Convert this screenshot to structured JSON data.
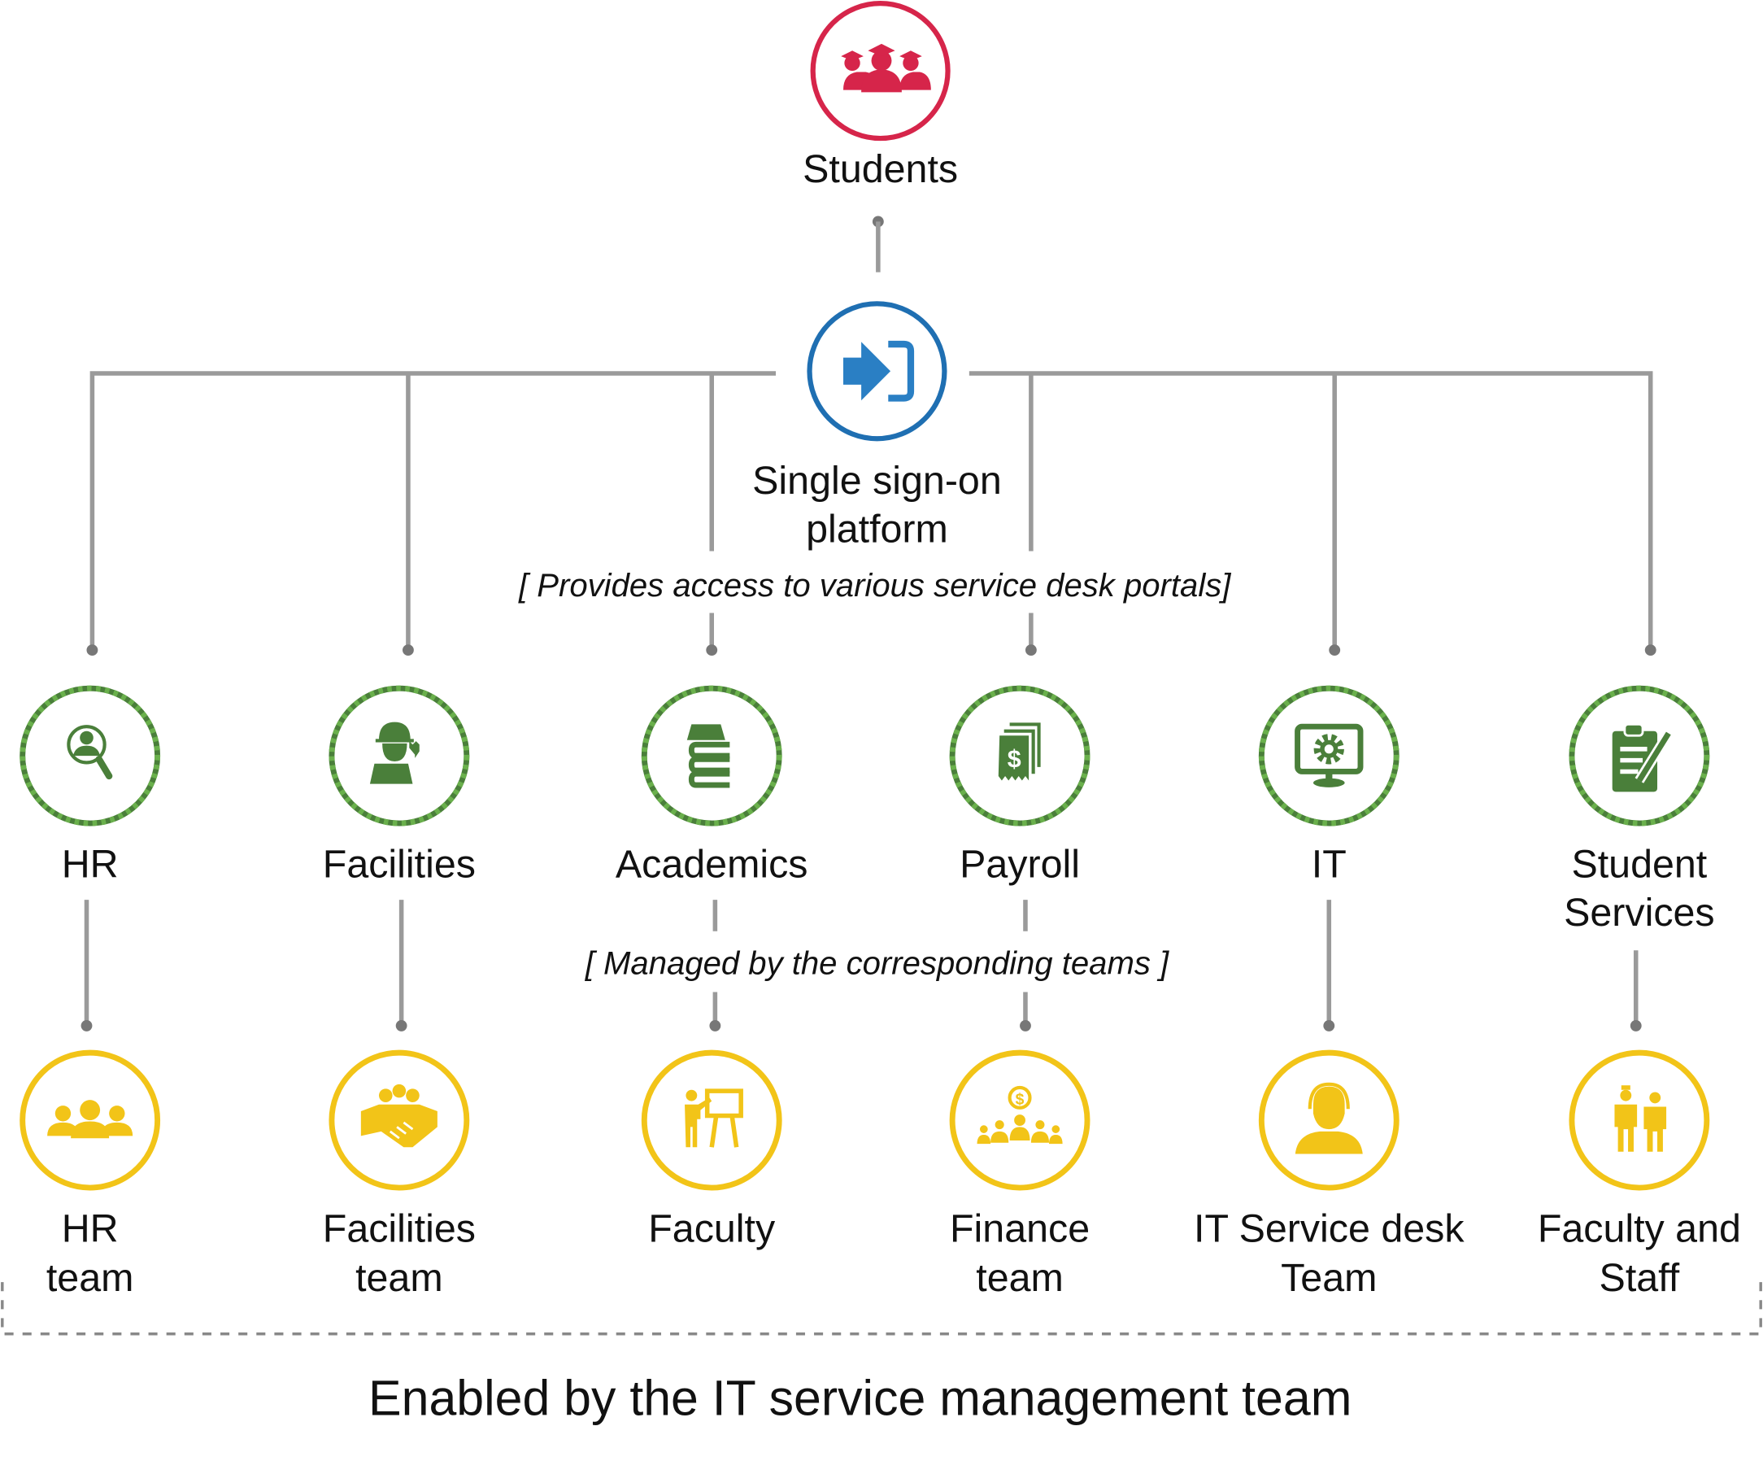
{
  "colors": {
    "students": "#d6254a",
    "sso": "#1f6fb2",
    "sso_icon": "#2a7fc4",
    "portal": "#4a7f3a",
    "portal_stripe": "#6ab04c",
    "team": "#f2c418",
    "connector": "#9a9a9a"
  },
  "students": {
    "label": "Students",
    "icon": "graduates-icon"
  },
  "sso": {
    "line1": "Single sign-on",
    "line2": "platform",
    "note": "[ Provides access to various service desk portals]",
    "icon": "sign-in-icon"
  },
  "managed_note": "[ Managed by the corresponding teams ]",
  "portals": [
    {
      "line1": "HR",
      "line2": "",
      "icon": "hr-search-icon",
      "team1": "HR",
      "team2": "team",
      "team_icon": "team-people-icon"
    },
    {
      "line1": "Facilities",
      "line2": "",
      "icon": "worker-wrench-icon",
      "team1": "Facilities",
      "team2": "team",
      "team_icon": "handshake-icon"
    },
    {
      "line1": "Academics",
      "line2": "",
      "icon": "books-icon",
      "team1": "Faculty",
      "team2": "",
      "team_icon": "teacher-board-icon"
    },
    {
      "line1": "Payroll",
      "line2": "",
      "icon": "dollar-bills-icon",
      "team1": "Finance",
      "team2": "team",
      "team_icon": "finance-group-icon"
    },
    {
      "line1": "IT",
      "line2": "",
      "icon": "monitor-gear-icon",
      "team1": "IT Service desk",
      "team2": "Team",
      "team_icon": "headset-agent-icon"
    },
    {
      "line1": "Student",
      "line2": "Services",
      "icon": "clipboard-pen-icon",
      "team1": "Faculty and",
      "team2": "Staff",
      "team_icon": "staff-people-icon"
    }
  ],
  "footer": "Enabled by the IT service management team"
}
